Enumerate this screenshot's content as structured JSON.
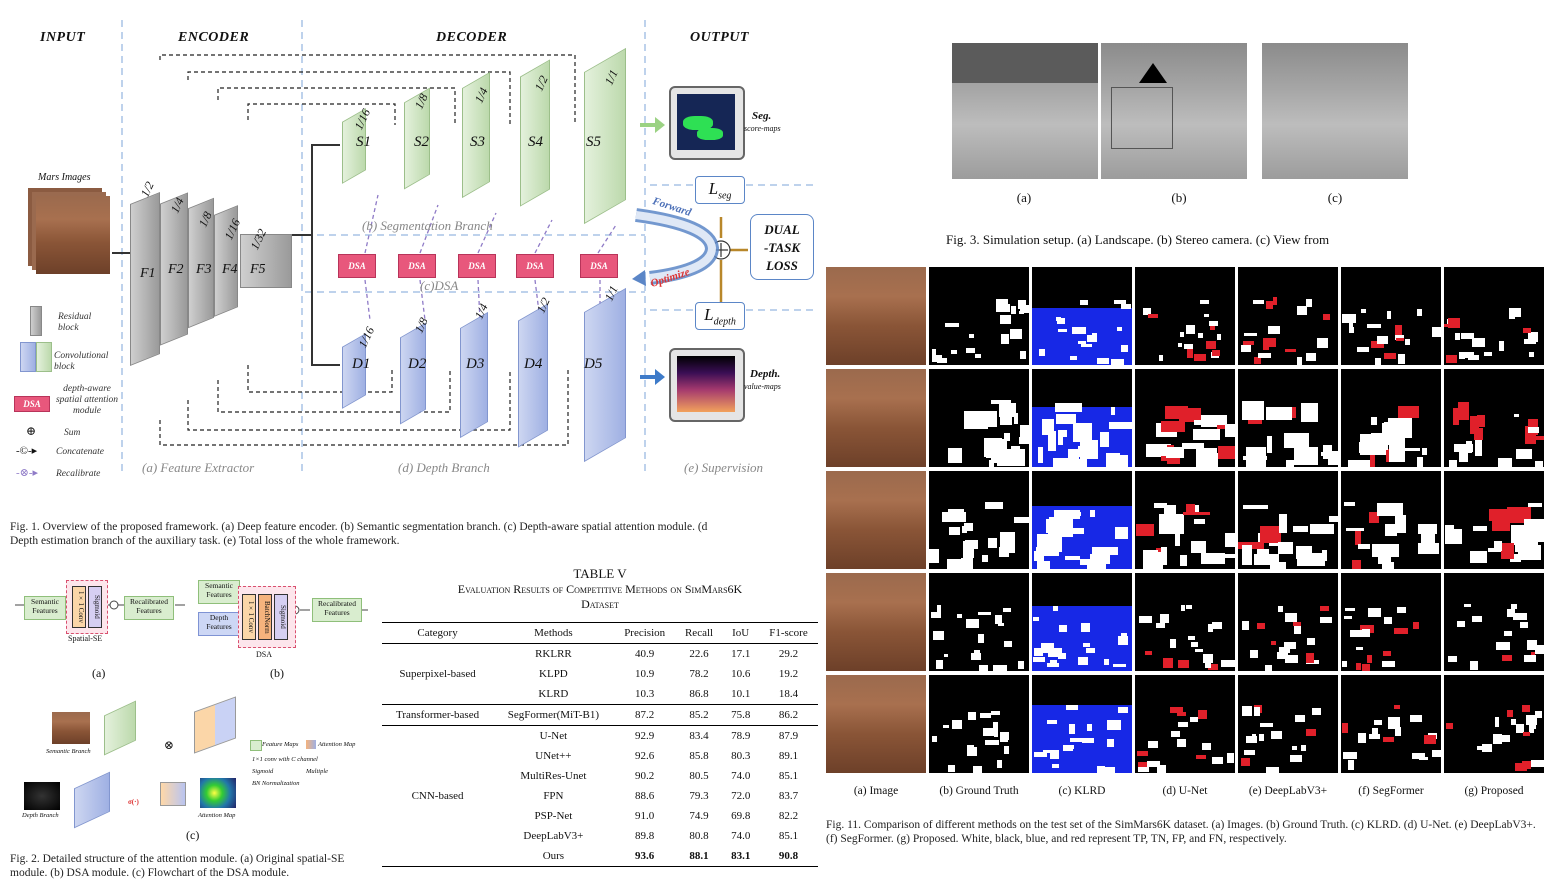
{
  "fig1": {
    "headers": {
      "input": "INPUT",
      "encoder": "ENCODER",
      "decoder": "DECODER",
      "output": "OUTPUT"
    },
    "mars_images_label": "Mars Images",
    "encoder_scales": [
      "1/2",
      "1/4",
      "1/8",
      "1/16",
      "1/32"
    ],
    "encoder_features": [
      "F1",
      "F2",
      "F3",
      "F4",
      "F5"
    ],
    "seg_scales": [
      "1/16",
      "1/8",
      "1/4",
      "1/2",
      "1/1"
    ],
    "seg_nodes": [
      "S1",
      "S2",
      "S3",
      "S4",
      "S5"
    ],
    "depth_scales": [
      "1/16",
      "1/8",
      "1/4",
      "1/2",
      "1/1"
    ],
    "depth_nodes": [
      "D1",
      "D2",
      "D3",
      "D4",
      "D5"
    ],
    "dsa_label": "DSA",
    "seg_branch": "(b) Segmentation Branch",
    "dsa_branch": "(c)DSA",
    "feature_extractor": "(a) Feature Extractor",
    "depth_branch": "(d) Depth Branch",
    "supervision": "(e) Supervision",
    "seg_output": "Seg.",
    "seg_output_sub": "score-maps",
    "depth_output": "Depth.",
    "depth_output_sub": "value-maps",
    "l_seg": "L",
    "l_seg_sub": "seg",
    "l_depth": "L",
    "l_depth_sub": "depth",
    "forward": "Forward",
    "optimize": "Optimize",
    "loss_box": [
      "DUAL",
      "-TASK",
      "LOSS"
    ],
    "legend": {
      "residual": "Residual block",
      "conv": "Convolutional block",
      "dsa": "depth-aware spatial attention module",
      "sum": "Sum",
      "concat": "Concatenate",
      "recalibrate": "Recalibrate"
    },
    "caption": "Fig. 1.  Overview of the proposed framework. (a) Deep feature encoder. (b) Semantic segmentation branch. (c) Depth-aware spatial attention module. (d",
    "caption2": "Depth estimation branch of the auxiliary task. (e) Total loss of the whole framework."
  },
  "fig2": {
    "semantic_features": "Semantic Features",
    "conv": "1×1 Conv",
    "sigmoid": "Sigmoid",
    "batchnorm": "BatchNorm",
    "recalibrated": "Recalibrated Features",
    "depth_features": "Depth Features",
    "spatial_se": "Spatial-SE",
    "dsa": "DSA",
    "label_a": "(a)",
    "label_b": "(b)",
    "label_c": "(c)",
    "semantic_branch": "Semantic Branch",
    "depth_branch": "Depth Branch",
    "attention_map": "Attention Map",
    "feature_maps": "Feature Maps",
    "attention_map_legend": "Attention Map",
    "conv_c": "1×1 conv with C channel",
    "sigmoid_legend": "Sigmoid",
    "multiple": "Multiple",
    "bn": "BN  Normalization",
    "caption": "Fig. 2.  Detailed structure of the attention module. (a) Original spatial-SE",
    "caption2": "module. (b) DSA module. (c) Flowchart of the DSA module."
  },
  "fig3": {
    "labels": [
      "(a)",
      "(b)",
      "(c)"
    ],
    "caption": "Fig. 3.  Simulation setup. (a) Landscape. (b) Stereo camera. (c) View from"
  },
  "table": {
    "title": "TABLE V",
    "subtitle1": "Evaluation Results of Competitive Methods on SimMars6K",
    "subtitle2": "Dataset",
    "headers": [
      "Category",
      "Methods",
      "Precision",
      "Recall",
      "IoU",
      "F1-score"
    ],
    "groups": [
      {
        "category": "Superpixel-based",
        "rows": [
          [
            "RKLRR",
            "40.9",
            "22.6",
            "17.1",
            "29.2"
          ],
          [
            "KLPD",
            "10.9",
            "78.2",
            "10.6",
            "19.2"
          ],
          [
            "KLRD",
            "10.3",
            "86.8",
            "10.1",
            "18.4"
          ]
        ]
      },
      {
        "category": "Transformer-based",
        "rows": [
          [
            "SegFormer(MiT-B1)",
            "87.2",
            "85.2",
            "75.8",
            "86.2"
          ]
        ]
      },
      {
        "category": "CNN-based",
        "rows": [
          [
            "U-Net",
            "92.9",
            "83.4",
            "78.9",
            "87.9"
          ],
          [
            "UNet++",
            "92.6",
            "85.8",
            "80.3",
            "89.1"
          ],
          [
            "MultiRes-Unet",
            "90.2",
            "80.5",
            "74.0",
            "85.1"
          ],
          [
            "FPN",
            "88.6",
            "79.3",
            "72.0",
            "83.7"
          ],
          [
            "PSP-Net",
            "91.0",
            "74.9",
            "69.8",
            "82.2"
          ],
          [
            "DeepLabV3+",
            "89.8",
            "80.8",
            "74.0",
            "85.1"
          ],
          [
            "Ours",
            "93.6",
            "88.1",
            "83.1",
            "90.8"
          ]
        ]
      }
    ]
  },
  "fig11": {
    "columns": [
      "(a) Image",
      "(b) Ground Truth",
      "(c) KLRD",
      "(d) U-Net",
      "(e) DeepLabV3+",
      "(f) SegFormer",
      "(g) Proposed"
    ],
    "caption": "Fig. 11.  Comparison of different methods on the test set of the SimMars6K dataset. (a) Images. (b) Ground Truth. (c) KLRD. (d) U-Net. (e) DeepLabV3+.",
    "caption2": "(f) SegFormer. (g) Proposed. White, black, blue, and red represent TP, TN, FP, and FN, respectively."
  },
  "colors": {
    "green": "#bcd9ac",
    "blue": "#9fb0e3",
    "dsa_pink": "#e8577c",
    "fp_blue": "#1a2cff",
    "fn_red": "#e0202a"
  }
}
